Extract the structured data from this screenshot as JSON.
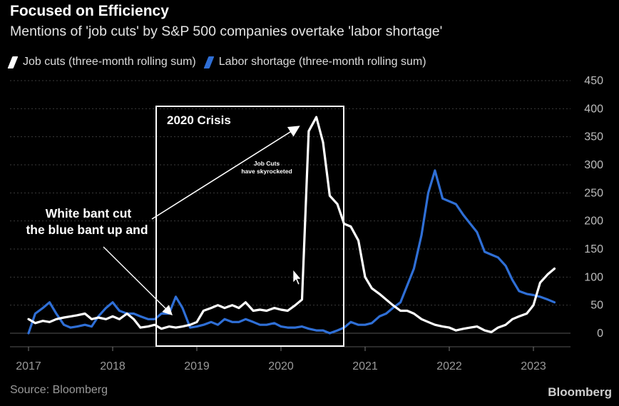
{
  "title": "Focused on Efficiency",
  "subtitle": "Mentions of 'job cuts' by S&P 500 companies overtake 'labor shortage'",
  "source": "Source: Bloomberg",
  "brand": "Bloomberg",
  "colors": {
    "job_cuts": "#ffffff",
    "labor_shortage": "#2f6fd6",
    "grid": "#3b3b3b",
    "axis_text": "#9a9a9a"
  },
  "annotations": {
    "box_label": "2020 Crisis",
    "small_note_line1": "Job Cuts",
    "small_note_line2": "have skyrocketed",
    "left_note_line1": "White bant cut",
    "left_note_line2": "the blue bant up and"
  },
  "chart_data": {
    "type": "line",
    "title": "Focused on Efficiency",
    "subtitle": "Mentions of 'job cuts' by S&P 500 companies overtake 'labor shortage'",
    "xlabel": "",
    "ylabel": "",
    "ylim": [
      0,
      450
    ],
    "xlim": [
      2016.9,
      2023.3
    ],
    "y_ticks": [
      0,
      50,
      100,
      150,
      200,
      250,
      300,
      350,
      400,
      450
    ],
    "x_ticks": [
      "2017",
      "2018",
      "2019",
      "2020",
      "2021",
      "2022",
      "2023"
    ],
    "grid": true,
    "legend_position": "top-left",
    "series": [
      {
        "name": "Job cuts (three-month rolling sum)",
        "color": "#ffffff",
        "x": [
          2017.0,
          2017.08,
          2017.17,
          2017.25,
          2017.33,
          2017.42,
          2017.5,
          2017.58,
          2017.67,
          2017.75,
          2017.83,
          2017.92,
          2018.0,
          2018.08,
          2018.17,
          2018.25,
          2018.33,
          2018.42,
          2018.5,
          2018.58,
          2018.67,
          2018.75,
          2018.83,
          2018.92,
          2019.0,
          2019.08,
          2019.17,
          2019.25,
          2019.33,
          2019.42,
          2019.5,
          2019.58,
          2019.67,
          2019.75,
          2019.83,
          2019.92,
          2020.0,
          2020.08,
          2020.17,
          2020.25,
          2020.33,
          2020.42,
          2020.5,
          2020.58,
          2020.67,
          2020.75,
          2020.83,
          2020.92,
          2021.0,
          2021.08,
          2021.17,
          2021.25,
          2021.33,
          2021.42,
          2021.5,
          2021.58,
          2021.67,
          2021.75,
          2021.83,
          2021.92,
          2022.0,
          2022.08,
          2022.17,
          2022.25,
          2022.33,
          2022.42,
          2022.5,
          2022.58,
          2022.67,
          2022.75,
          2022.83,
          2022.92,
          2023.0,
          2023.08,
          2023.17,
          2023.25
        ],
        "values": [
          25,
          18,
          22,
          20,
          25,
          28,
          30,
          32,
          35,
          25,
          28,
          25,
          30,
          25,
          35,
          25,
          10,
          12,
          15,
          8,
          12,
          10,
          12,
          15,
          20,
          40,
          45,
          50,
          45,
          50,
          45,
          55,
          40,
          42,
          40,
          45,
          42,
          40,
          50,
          60,
          360,
          385,
          340,
          245,
          230,
          195,
          190,
          165,
          100,
          80,
          70,
          60,
          50,
          40,
          40,
          35,
          25,
          20,
          15,
          12,
          10,
          5,
          8,
          10,
          12,
          5,
          2,
          10,
          15,
          25,
          30,
          35,
          50,
          90,
          105,
          115
        ]
      },
      {
        "name": "Labor shortage (three-month rolling sum)",
        "color": "#2f6fd6",
        "x": [
          2017.0,
          2017.08,
          2017.17,
          2017.25,
          2017.33,
          2017.42,
          2017.5,
          2017.58,
          2017.67,
          2017.75,
          2017.83,
          2017.92,
          2018.0,
          2018.08,
          2018.17,
          2018.25,
          2018.33,
          2018.42,
          2018.5,
          2018.58,
          2018.67,
          2018.75,
          2018.83,
          2018.92,
          2019.0,
          2019.08,
          2019.17,
          2019.25,
          2019.33,
          2019.42,
          2019.5,
          2019.58,
          2019.67,
          2019.75,
          2019.83,
          2019.92,
          2020.0,
          2020.08,
          2020.17,
          2020.25,
          2020.33,
          2020.42,
          2020.5,
          2020.58,
          2020.67,
          2020.75,
          2020.83,
          2020.92,
          2021.0,
          2021.08,
          2021.17,
          2021.25,
          2021.33,
          2021.42,
          2021.5,
          2021.58,
          2021.67,
          2021.75,
          2021.83,
          2021.92,
          2022.0,
          2022.08,
          2022.17,
          2022.25,
          2022.33,
          2022.42,
          2022.5,
          2022.58,
          2022.67,
          2022.75,
          2022.83,
          2022.92,
          2023.0,
          2023.08,
          2023.17,
          2023.25
        ],
        "values": [
          0,
          35,
          45,
          55,
          35,
          15,
          10,
          12,
          15,
          12,
          30,
          45,
          55,
          40,
          35,
          35,
          30,
          25,
          25,
          35,
          35,
          65,
          45,
          10,
          12,
          15,
          20,
          15,
          25,
          20,
          20,
          25,
          20,
          15,
          15,
          18,
          12,
          10,
          10,
          12,
          8,
          5,
          5,
          0,
          5,
          10,
          20,
          15,
          15,
          18,
          30,
          35,
          45,
          55,
          85,
          115,
          175,
          250,
          290,
          240,
          235,
          230,
          210,
          195,
          180,
          145,
          140,
          135,
          120,
          95,
          75,
          70,
          68,
          65,
          60,
          55
        ]
      }
    ]
  }
}
